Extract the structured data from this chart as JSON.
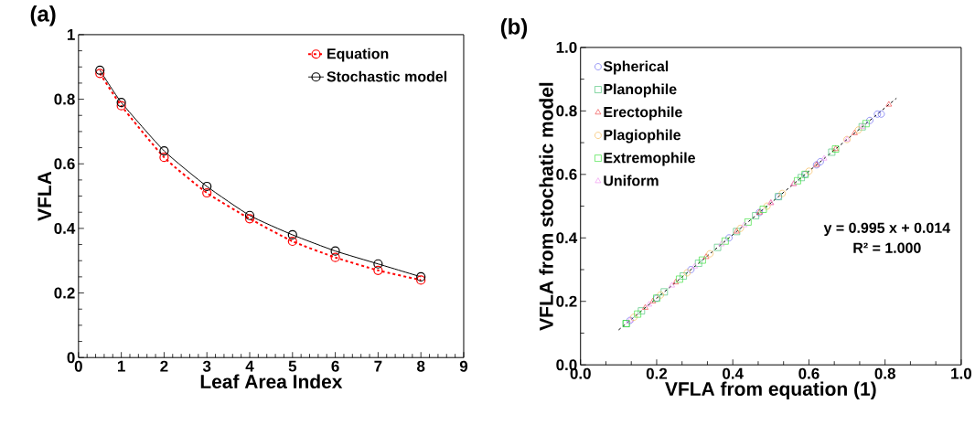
{
  "chart_data": [
    {
      "type": "line",
      "title": "(a)",
      "xlabel": "Leaf Area Index",
      "ylabel": "VFLA",
      "x": [
        0.5,
        1,
        2,
        3,
        4,
        5,
        6,
        7,
        8
      ],
      "series": [
        {
          "name": "Equation",
          "color": "#ff0000",
          "line_style": "dashed",
          "marker": "circle",
          "values": [
            0.88,
            0.78,
            0.62,
            0.51,
            0.43,
            0.36,
            0.31,
            0.27,
            0.24
          ]
        },
        {
          "name": "Stochastic model",
          "color": "#000000",
          "line_style": "solid",
          "marker": "circle",
          "values": [
            0.89,
            0.79,
            0.64,
            0.53,
            0.44,
            0.38,
            0.33,
            0.29,
            0.25
          ]
        }
      ],
      "xlim": [
        0,
        9
      ],
      "xticks": [
        0,
        1,
        2,
        3,
        4,
        5,
        6,
        7,
        8,
        9
      ],
      "ylim": [
        0,
        1
      ],
      "yticks": [
        0,
        0.2,
        0.4,
        0.6,
        0.8,
        1
      ],
      "legend": "top right"
    },
    {
      "type": "scatter",
      "title": "(b)",
      "xlabel": "VFLA from equation (1)",
      "ylabel": "VFLA from stochatic model",
      "series": [
        {
          "name": "Spherical",
          "color": "#5555ee",
          "marker": "circle",
          "x": [
            0.13,
            0.2,
            0.29,
            0.39,
            0.47,
            0.52,
            0.59,
            0.62,
            0.63,
            0.76,
            0.78,
            0.79
          ],
          "values": [
            0.14,
            0.21,
            0.3,
            0.4,
            0.48,
            0.53,
            0.6,
            0.63,
            0.64,
            0.77,
            0.79,
            0.79
          ]
        },
        {
          "name": "Planophile",
          "color": "#33bb66",
          "marker": "square",
          "x": [
            0.12,
            0.16,
            0.22,
            0.27,
            0.31,
            0.36,
            0.41,
            0.46,
            0.52,
            0.58,
            0.66,
            0.74
          ],
          "values": [
            0.13,
            0.17,
            0.23,
            0.28,
            0.32,
            0.37,
            0.42,
            0.47,
            0.53,
            0.59,
            0.67,
            0.75
          ]
        },
        {
          "name": "Erectophile",
          "color": "#ee3333",
          "marker": "triangle",
          "x": [
            0.17,
            0.19,
            0.25,
            0.33,
            0.41,
            0.47,
            0.5,
            0.56,
            0.62,
            0.67,
            0.72,
            0.81
          ],
          "values": [
            0.18,
            0.2,
            0.26,
            0.34,
            0.42,
            0.48,
            0.51,
            0.57,
            0.63,
            0.68,
            0.73,
            0.82
          ]
        },
        {
          "name": "Plagiophile",
          "color": "#f5b041",
          "marker": "circle",
          "x": [
            0.14,
            0.21,
            0.28,
            0.34,
            0.42,
            0.49,
            0.53,
            0.6,
            0.7,
            0.73
          ],
          "values": [
            0.15,
            0.22,
            0.29,
            0.35,
            0.43,
            0.5,
            0.54,
            0.61,
            0.71,
            0.74
          ]
        },
        {
          "name": "Extremophile",
          "color": "#22dd22",
          "marker": "square",
          "x": [
            0.12,
            0.15,
            0.2,
            0.26,
            0.32,
            0.38,
            0.44,
            0.48,
            0.57,
            0.59,
            0.67,
            0.75
          ],
          "values": [
            0.13,
            0.16,
            0.21,
            0.27,
            0.33,
            0.39,
            0.45,
            0.49,
            0.58,
            0.6,
            0.68,
            0.76
          ]
        },
        {
          "name": "Uniform",
          "color": "#ee88ee",
          "marker": "triangle",
          "x": [
            0.13,
            0.18,
            0.24,
            0.3,
            0.37,
            0.43,
            0.5,
            0.56,
            0.64,
            0.7,
            0.74
          ],
          "values": [
            0.14,
            0.19,
            0.25,
            0.31,
            0.38,
            0.44,
            0.51,
            0.57,
            0.65,
            0.71,
            0.75
          ]
        },
        {
          "type": "line",
          "color": "#000000",
          "line_style": "dashed",
          "marker": "none",
          "x": [
            0.1,
            0.83
          ],
          "values": [
            0.11,
            0.84
          ]
        }
      ],
      "xlim": [
        0,
        1
      ],
      "xticks": [
        {
          "value": 0,
          "label": "0.0"
        },
        0.2,
        0.4,
        0.6,
        0.8,
        {
          "value": 1,
          "label": "1.0"
        }
      ],
      "ylim": [
        0,
        1
      ],
      "yticks": [
        {
          "value": 0,
          "label": "0.0"
        },
        0.2,
        0.4,
        0.6,
        0.8,
        {
          "value": 1,
          "label": "1.0"
        }
      ],
      "legend": "top left",
      "annotations": [
        "y = 0.995 x + 0.014",
        "R² = 1.000"
      ]
    }
  ]
}
